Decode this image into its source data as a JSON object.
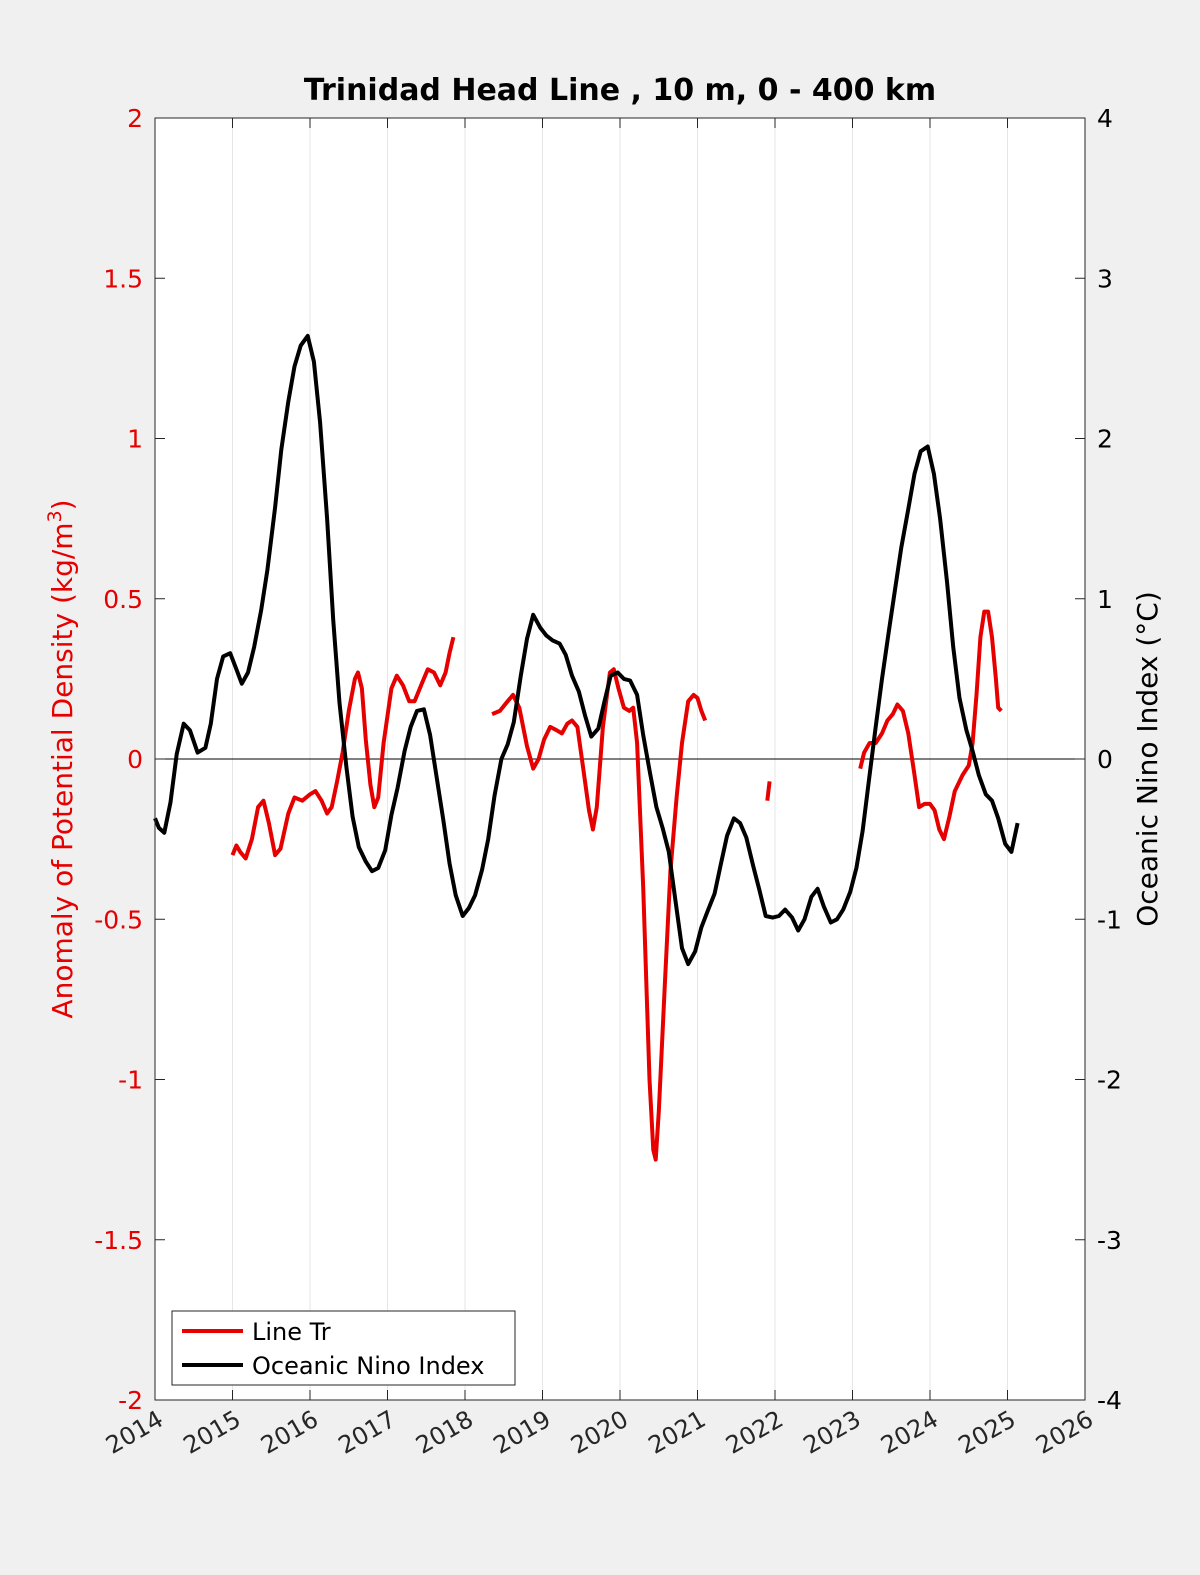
{
  "chart_data": {
    "type": "line",
    "title": "Trinidad Head Line , 10 m, 0 - 400 km",
    "xlim": [
      2014,
      2026
    ],
    "x_ticks": [
      2014,
      2015,
      2016,
      2017,
      2018,
      2019,
      2020,
      2021,
      2022,
      2023,
      2024,
      2025,
      2026
    ],
    "x_tick_labels": [
      "2014",
      "2015",
      "2016",
      "2017",
      "2018",
      "2019",
      "2020",
      "2021",
      "2022",
      "2023",
      "2024",
      "2025",
      "2026"
    ],
    "vertical_grid": true,
    "zero_line": true,
    "legend_position": "bottom-left",
    "left_axis": {
      "label_main": "Anomaly of Potential Density (kg/m",
      "label_sup": "3",
      "label_close": ")",
      "ylim": [
        -2,
        2
      ],
      "ticks": [
        2,
        1.5,
        1,
        0.5,
        0,
        -0.5,
        -1,
        -1.5,
        -2
      ],
      "tick_labels": [
        "2",
        "1.5",
        "1",
        "0.5",
        "0",
        "-0.5",
        "-1",
        "-1.5",
        "-2"
      ],
      "color": "#e60000"
    },
    "right_axis": {
      "label": "Oceanic Nino Index (°C)",
      "ylim": [
        -4,
        4
      ],
      "ticks": [
        4,
        3,
        2,
        1,
        0,
        -1,
        -2,
        -3,
        -4
      ],
      "tick_labels": [
        "4",
        "3",
        "2",
        "1",
        "0",
        "-1",
        "-2",
        "-3",
        "-4"
      ],
      "color": "#000000"
    },
    "series": [
      {
        "name": "Line Tr",
        "axis": "left",
        "color": "#e60000",
        "segments": [
          [
            [
              2015.0,
              -0.3
            ],
            [
              2015.05,
              -0.27
            ],
            [
              2015.1,
              -0.29
            ],
            [
              2015.17,
              -0.31
            ],
            [
              2015.25,
              -0.25
            ],
            [
              2015.33,
              -0.15
            ],
            [
              2015.4,
              -0.13
            ],
            [
              2015.47,
              -0.2
            ],
            [
              2015.55,
              -0.3
            ],
            [
              2015.62,
              -0.28
            ],
            [
              2015.72,
              -0.17
            ],
            [
              2015.8,
              -0.12
            ],
            [
              2015.9,
              -0.13
            ],
            [
              2016.0,
              -0.11
            ],
            [
              2016.07,
              -0.1
            ],
            [
              2016.15,
              -0.13
            ],
            [
              2016.22,
              -0.17
            ],
            [
              2016.28,
              -0.15
            ],
            [
              2016.35,
              -0.07
            ],
            [
              2016.42,
              0.02
            ],
            [
              2016.5,
              0.15
            ],
            [
              2016.58,
              0.25
            ],
            [
              2016.62,
              0.27
            ],
            [
              2016.67,
              0.22
            ],
            [
              2016.72,
              0.06
            ],
            [
              2016.78,
              -0.08
            ],
            [
              2016.83,
              -0.15
            ],
            [
              2016.88,
              -0.12
            ],
            [
              2016.95,
              0.05
            ],
            [
              2017.05,
              0.22
            ],
            [
              2017.12,
              0.26
            ],
            [
              2017.2,
              0.23
            ],
            [
              2017.28,
              0.18
            ],
            [
              2017.35,
              0.18
            ],
            [
              2017.45,
              0.24
            ],
            [
              2017.52,
              0.28
            ],
            [
              2017.6,
              0.27
            ],
            [
              2017.68,
              0.23
            ],
            [
              2017.75,
              0.27
            ],
            [
              2017.8,
              0.33
            ],
            [
              2017.85,
              0.38
            ]
          ],
          [
            [
              2018.35,
              0.14
            ],
            [
              2018.45,
              0.15
            ],
            [
              2018.55,
              0.18
            ],
            [
              2018.62,
              0.2
            ],
            [
              2018.7,
              0.16
            ],
            [
              2018.8,
              0.04
            ],
            [
              2018.88,
              -0.03
            ],
            [
              2018.95,
              0.0
            ],
            [
              2019.02,
              0.06
            ],
            [
              2019.1,
              0.1
            ],
            [
              2019.18,
              0.09
            ],
            [
              2019.25,
              0.08
            ],
            [
              2019.32,
              0.11
            ],
            [
              2019.38,
              0.12
            ],
            [
              2019.45,
              0.1
            ],
            [
              2019.52,
              -0.02
            ],
            [
              2019.6,
              -0.16
            ],
            [
              2019.65,
              -0.22
            ],
            [
              2019.7,
              -0.15
            ],
            [
              2019.78,
              0.1
            ],
            [
              2019.87,
              0.27
            ],
            [
              2019.92,
              0.28
            ],
            [
              2019.98,
              0.22
            ],
            [
              2020.05,
              0.16
            ],
            [
              2020.12,
              0.15
            ],
            [
              2020.17,
              0.16
            ],
            [
              2020.22,
              0.05
            ],
            [
              2020.3,
              -0.4
            ],
            [
              2020.38,
              -1.0
            ],
            [
              2020.43,
              -1.22
            ],
            [
              2020.46,
              -1.25
            ],
            [
              2020.5,
              -1.1
            ],
            [
              2020.58,
              -0.7
            ],
            [
              2020.65,
              -0.35
            ],
            [
              2020.73,
              -0.12
            ],
            [
              2020.8,
              0.05
            ],
            [
              2020.88,
              0.18
            ],
            [
              2020.95,
              0.2
            ],
            [
              2021.0,
              0.19
            ],
            [
              2021.05,
              0.15
            ],
            [
              2021.1,
              0.12
            ]
          ],
          [
            [
              2021.93,
              -0.07
            ],
            [
              2021.9,
              -0.13
            ]
          ],
          [
            [
              2023.1,
              -0.03
            ],
            [
              2023.15,
              0.02
            ],
            [
              2023.22,
              0.05
            ],
            [
              2023.3,
              0.05
            ],
            [
              2023.38,
              0.08
            ],
            [
              2023.45,
              0.12
            ],
            [
              2023.52,
              0.14
            ],
            [
              2023.58,
              0.17
            ],
            [
              2023.65,
              0.15
            ],
            [
              2023.72,
              0.08
            ],
            [
              2023.8,
              -0.05
            ],
            [
              2023.86,
              -0.15
            ],
            [
              2023.93,
              -0.14
            ],
            [
              2024.0,
              -0.14
            ],
            [
              2024.06,
              -0.16
            ],
            [
              2024.12,
              -0.22
            ],
            [
              2024.18,
              -0.25
            ],
            [
              2024.25,
              -0.18
            ],
            [
              2024.32,
              -0.1
            ],
            [
              2024.42,
              -0.05
            ],
            [
              2024.5,
              -0.02
            ],
            [
              2024.55,
              0.05
            ],
            [
              2024.6,
              0.2
            ],
            [
              2024.65,
              0.38
            ],
            [
              2024.7,
              0.46
            ],
            [
              2024.75,
              0.46
            ],
            [
              2024.8,
              0.38
            ],
            [
              2024.85,
              0.25
            ],
            [
              2024.88,
              0.16
            ],
            [
              2024.92,
              0.15
            ]
          ]
        ]
      },
      {
        "name": "Oceanic Nino Index",
        "axis": "right",
        "color": "#000000",
        "segments": [
          [
            [
              2014.0,
              -0.37
            ],
            [
              2014.05,
              -0.43
            ],
            [
              2014.12,
              -0.46
            ],
            [
              2014.2,
              -0.27
            ],
            [
              2014.28,
              0.03
            ],
            [
              2014.37,
              0.22
            ],
            [
              2014.45,
              0.18
            ],
            [
              2014.55,
              0.04
            ],
            [
              2014.65,
              0.07
            ],
            [
              2014.72,
              0.22
            ],
            [
              2014.8,
              0.5
            ],
            [
              2014.88,
              0.64
            ],
            [
              2014.97,
              0.66
            ],
            [
              2015.05,
              0.56
            ],
            [
              2015.12,
              0.47
            ],
            [
              2015.2,
              0.54
            ],
            [
              2015.28,
              0.7
            ],
            [
              2015.37,
              0.93
            ],
            [
              2015.45,
              1.18
            ],
            [
              2015.55,
              1.57
            ],
            [
              2015.63,
              1.93
            ],
            [
              2015.72,
              2.23
            ],
            [
              2015.8,
              2.45
            ],
            [
              2015.88,
              2.58
            ],
            [
              2015.97,
              2.64
            ],
            [
              2016.05,
              2.48
            ],
            [
              2016.13,
              2.1
            ],
            [
              2016.22,
              1.5
            ],
            [
              2016.3,
              0.87
            ],
            [
              2016.38,
              0.35
            ],
            [
              2016.47,
              -0.05
            ],
            [
              2016.55,
              -0.36
            ],
            [
              2016.63,
              -0.55
            ],
            [
              2016.72,
              -0.64
            ],
            [
              2016.8,
              -0.7
            ],
            [
              2016.88,
              -0.68
            ],
            [
              2016.97,
              -0.57
            ],
            [
              2017.05,
              -0.35
            ],
            [
              2017.13,
              -0.18
            ],
            [
              2017.22,
              0.05
            ],
            [
              2017.3,
              0.2
            ],
            [
              2017.38,
              0.3
            ],
            [
              2017.47,
              0.31
            ],
            [
              2017.55,
              0.15
            ],
            [
              2017.63,
              -0.1
            ],
            [
              2017.72,
              -0.38
            ],
            [
              2017.8,
              -0.65
            ],
            [
              2017.88,
              -0.85
            ],
            [
              2017.97,
              -0.98
            ],
            [
              2018.05,
              -0.93
            ],
            [
              2018.13,
              -0.85
            ],
            [
              2018.22,
              -0.69
            ],
            [
              2018.3,
              -0.5
            ],
            [
              2018.38,
              -0.23
            ],
            [
              2018.47,
              0.0
            ],
            [
              2018.55,
              0.09
            ],
            [
              2018.63,
              0.23
            ],
            [
              2018.72,
              0.52
            ],
            [
              2018.8,
              0.75
            ],
            [
              2018.88,
              0.9
            ],
            [
              2018.97,
              0.82
            ],
            [
              2019.05,
              0.77
            ],
            [
              2019.13,
              0.74
            ],
            [
              2019.22,
              0.72
            ],
            [
              2019.3,
              0.65
            ],
            [
              2019.38,
              0.52
            ],
            [
              2019.47,
              0.42
            ],
            [
              2019.55,
              0.27
            ],
            [
              2019.63,
              0.14
            ],
            [
              2019.72,
              0.19
            ],
            [
              2019.8,
              0.36
            ],
            [
              2019.88,
              0.52
            ],
            [
              2019.97,
              0.54
            ],
            [
              2020.05,
              0.5
            ],
            [
              2020.13,
              0.49
            ],
            [
              2020.22,
              0.4
            ],
            [
              2020.3,
              0.15
            ],
            [
              2020.38,
              -0.07
            ],
            [
              2020.47,
              -0.3
            ],
            [
              2020.55,
              -0.43
            ],
            [
              2020.63,
              -0.58
            ],
            [
              2020.72,
              -0.9
            ],
            [
              2020.8,
              -1.18
            ],
            [
              2020.88,
              -1.28
            ],
            [
              2020.97,
              -1.2
            ],
            [
              2021.05,
              -1.05
            ],
            [
              2021.13,
              -0.95
            ],
            [
              2021.22,
              -0.84
            ],
            [
              2021.3,
              -0.66
            ],
            [
              2021.38,
              -0.48
            ],
            [
              2021.47,
              -0.37
            ],
            [
              2021.55,
              -0.4
            ],
            [
              2021.63,
              -0.49
            ],
            [
              2021.72,
              -0.67
            ],
            [
              2021.8,
              -0.82
            ],
            [
              2021.88,
              -0.98
            ],
            [
              2021.97,
              -0.99
            ],
            [
              2022.05,
              -0.98
            ],
            [
              2022.13,
              -0.94
            ],
            [
              2022.22,
              -0.99
            ],
            [
              2022.3,
              -1.07
            ],
            [
              2022.38,
              -1.0
            ],
            [
              2022.47,
              -0.86
            ],
            [
              2022.55,
              -0.81
            ],
            [
              2022.63,
              -0.92
            ],
            [
              2022.72,
              -1.02
            ],
            [
              2022.8,
              -1.0
            ],
            [
              2022.88,
              -0.94
            ],
            [
              2022.97,
              -0.83
            ],
            [
              2023.05,
              -0.68
            ],
            [
              2023.13,
              -0.45
            ],
            [
              2023.22,
              -0.1
            ],
            [
              2023.3,
              0.2
            ],
            [
              2023.38,
              0.5
            ],
            [
              2023.47,
              0.8
            ],
            [
              2023.55,
              1.06
            ],
            [
              2023.63,
              1.32
            ],
            [
              2023.72,
              1.56
            ],
            [
              2023.8,
              1.78
            ],
            [
              2023.88,
              1.92
            ],
            [
              2023.97,
              1.95
            ],
            [
              2024.05,
              1.78
            ],
            [
              2024.13,
              1.5
            ],
            [
              2024.22,
              1.1
            ],
            [
              2024.3,
              0.7
            ],
            [
              2024.38,
              0.38
            ],
            [
              2024.47,
              0.18
            ],
            [
              2024.55,
              0.05
            ],
            [
              2024.63,
              -0.1
            ],
            [
              2024.72,
              -0.22
            ],
            [
              2024.8,
              -0.26
            ],
            [
              2024.88,
              -0.37
            ],
            [
              2024.97,
              -0.53
            ],
            [
              2025.05,
              -0.58
            ],
            [
              2025.13,
              -0.4
            ]
          ]
        ]
      }
    ]
  }
}
